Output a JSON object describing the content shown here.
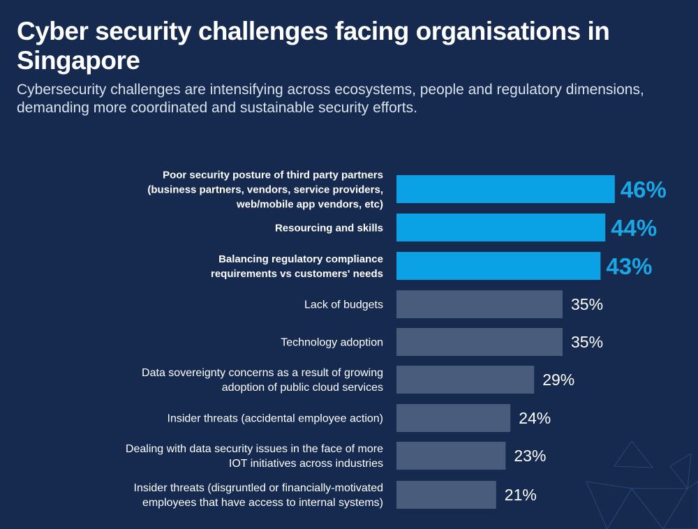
{
  "title": "Cyber security challenges facing organisations in Singapore",
  "subtitle": "Cybersecurity challenges are intensifying across ecosystems, people and regulatory dimensions, demanding more coordinated and sustainable security efforts.",
  "colors": {
    "background": "#152a4e",
    "highlight_bar": "#0aa2e4",
    "highlight_text": "#1aa7e6",
    "regular_bar": "#4a5c7c",
    "regular_text": "#ffffff"
  },
  "chart_data": {
    "type": "bar",
    "orientation": "horizontal",
    "title": "Cyber security challenges facing organisations in Singapore",
    "subtitle": "Cybersecurity challenges are intensifying across ecosystems, people and regulatory dimensions, demanding more coordinated and sustainable security efforts.",
    "unit": "%",
    "grid": false,
    "xlim": [
      0,
      100
    ],
    "categories": [
      [
        "Poor security posture of third party partners",
        "(business partners, vendors, service providers,",
        "web/mobile app vendors, etc)"
      ],
      [
        "Resourcing and skills"
      ],
      [
        "Balancing regulatory compliance",
        "requirements vs customers' needs"
      ],
      [
        "Lack of budgets"
      ],
      [
        "Technology adoption"
      ],
      [
        "Data sovereignty concerns as a result of growing",
        "adoption of public cloud services"
      ],
      [
        "Insider threats (accidental employee action)"
      ],
      [
        "Dealing with data security issues in the face of more",
        "IOT initiatives across industries"
      ],
      [
        "Insider threats (disgruntled or financially-motivated",
        "employees that have access to internal systems)"
      ]
    ],
    "values": [
      46,
      44,
      43,
      35,
      35,
      29,
      24,
      23,
      21
    ],
    "value_labels": [
      "46%",
      "44%",
      "43%",
      "35%",
      "35%",
      "29%",
      "24%",
      "23%",
      "21%"
    ],
    "highlighted": [
      true,
      true,
      true,
      false,
      false,
      false,
      false,
      false,
      false
    ]
  }
}
